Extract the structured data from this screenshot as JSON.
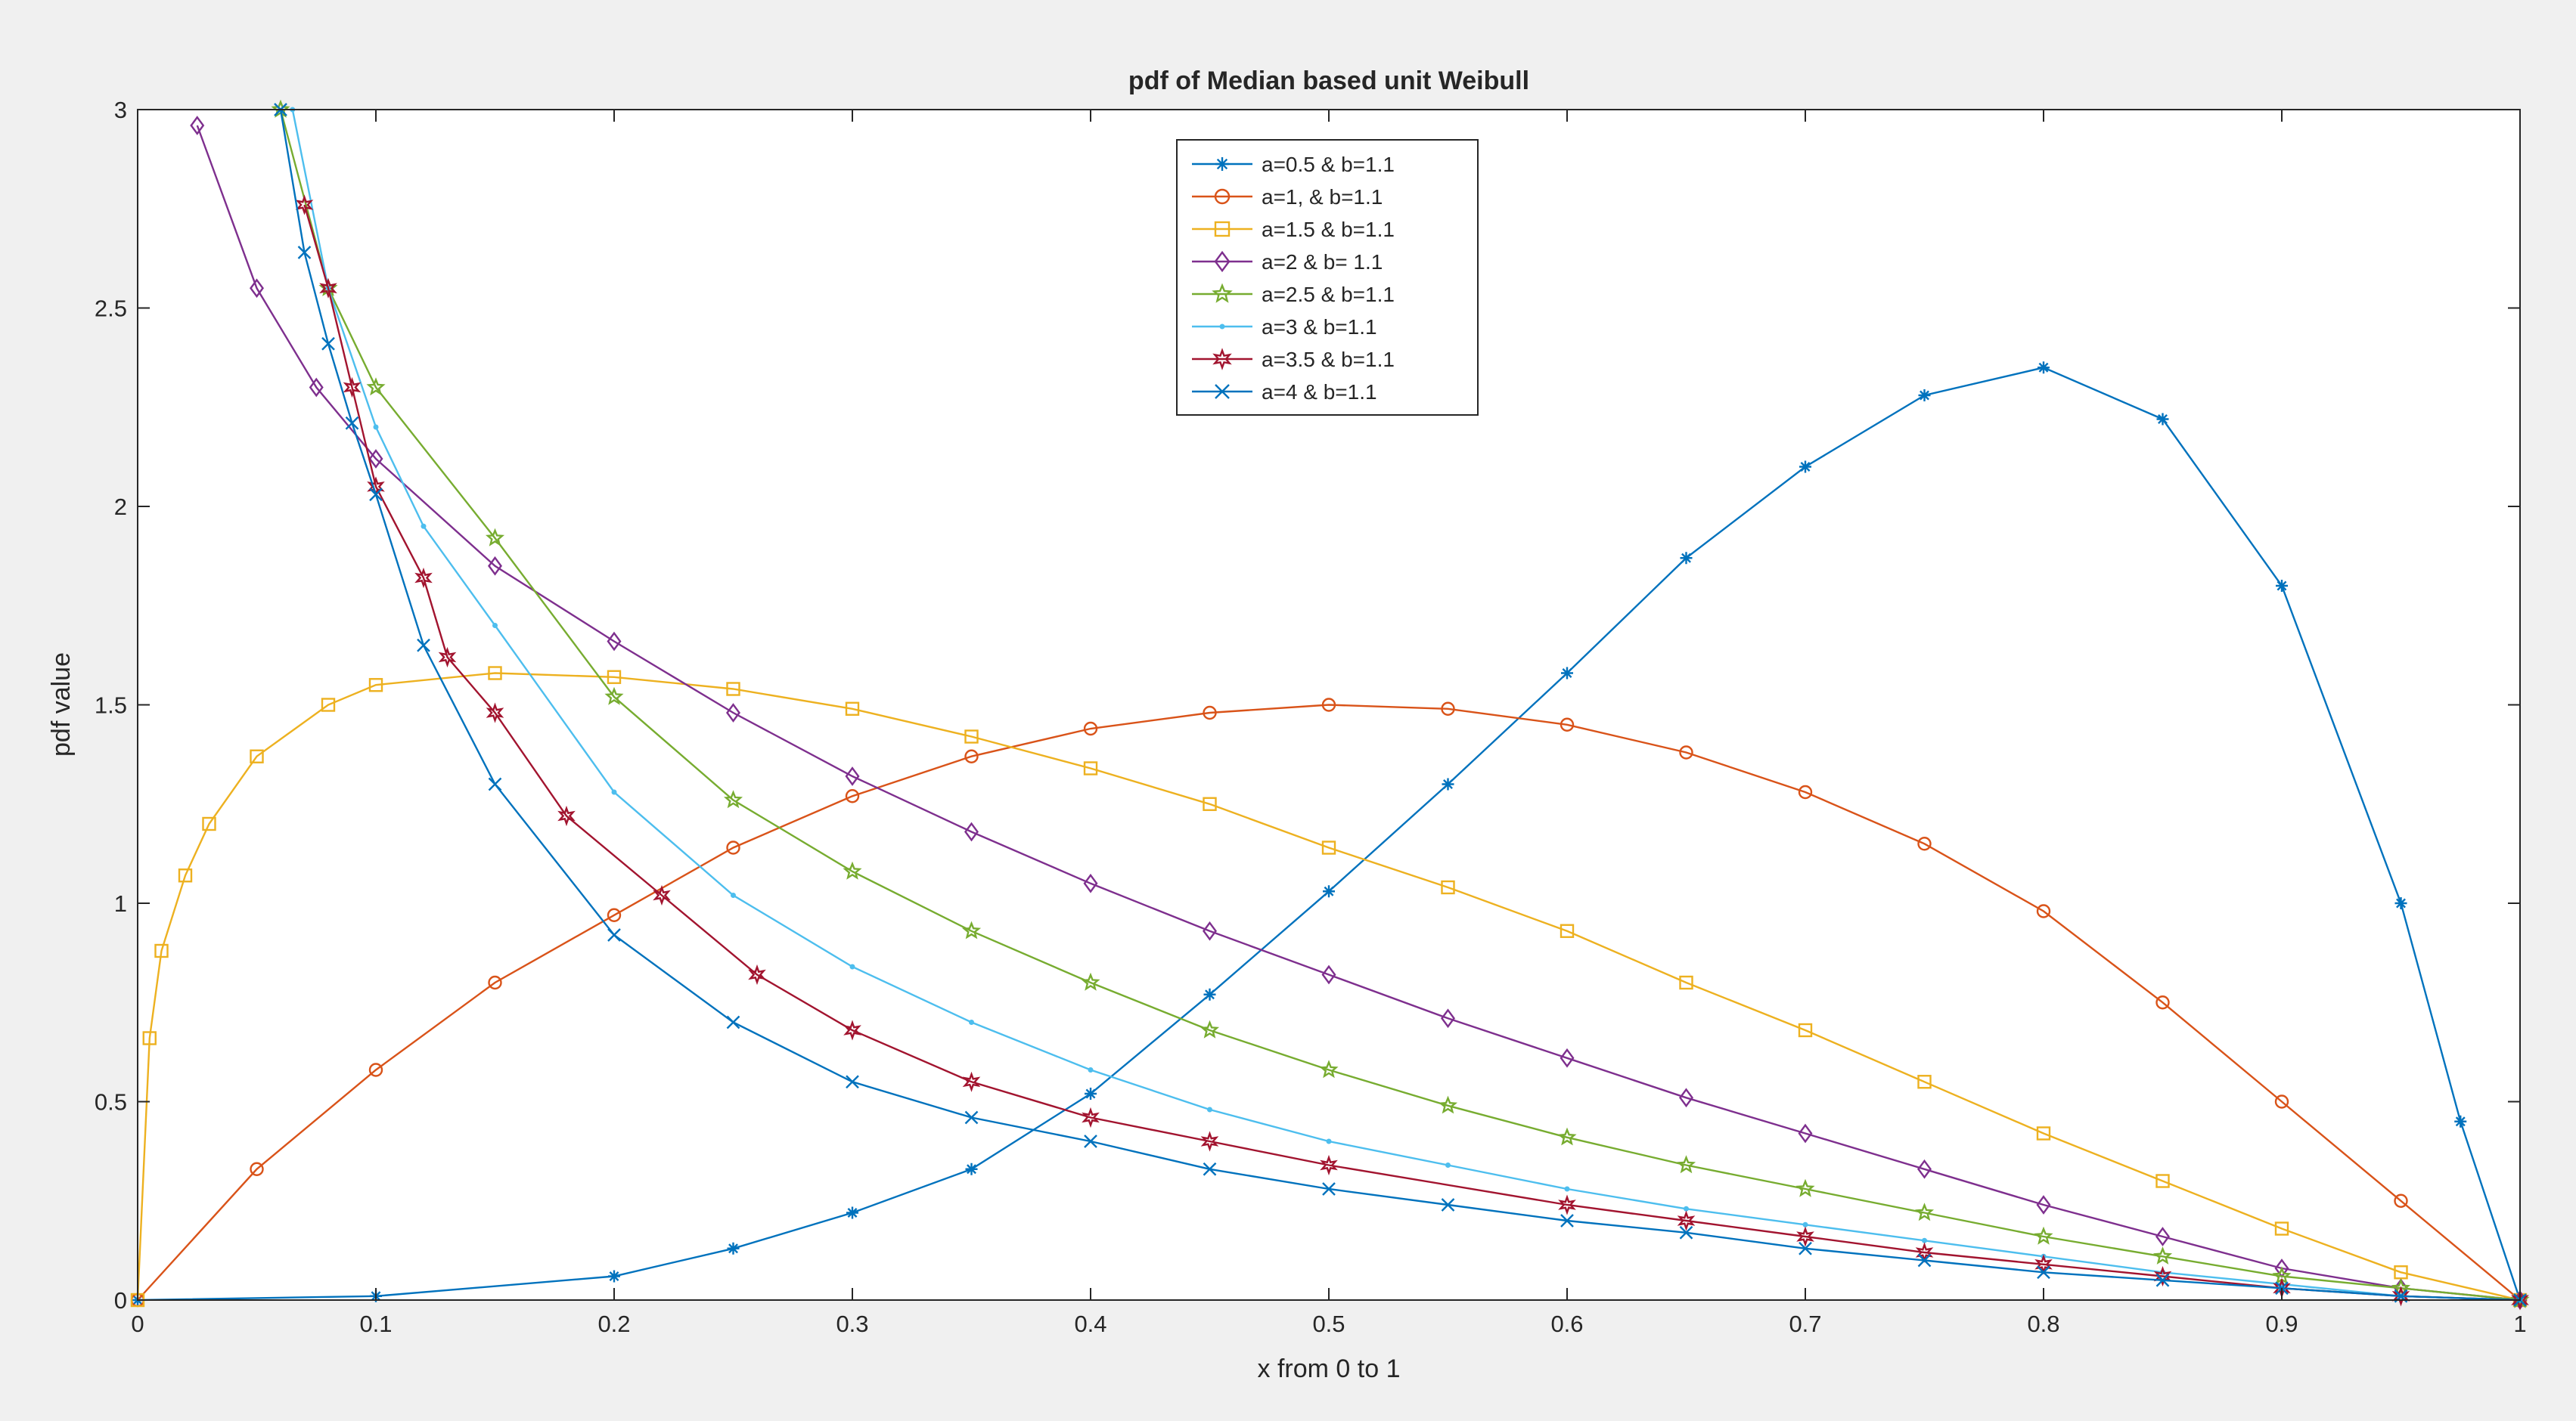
{
  "chart_data": {
    "type": "line",
    "title": "pdf of Median based unit Weibull",
    "xlabel": "x from 0 to 1",
    "ylabel": "pdf value",
    "xlim": [
      0,
      1
    ],
    "ylim": [
      0,
      3
    ],
    "xticks": [
      "0",
      "0.1",
      "0.2",
      "0.3",
      "0.4",
      "0.5",
      "0.6",
      "0.7",
      "0.8",
      "0.9",
      "1"
    ],
    "yticks": [
      "0",
      "0.5",
      "1",
      "1.5",
      "2",
      "2.5",
      "3"
    ],
    "grid": false,
    "legend_position": "top-center",
    "series": [
      {
        "name": "a=0.5 & b=1.1",
        "color": "#0072BD",
        "marker": "asterisk",
        "x": [
          0,
          0.1,
          0.2,
          0.25,
          0.3,
          0.35,
          0.4,
          0.45,
          0.5,
          0.55,
          0.6,
          0.65,
          0.7,
          0.75,
          0.8,
          0.85,
          0.9,
          0.95,
          0.975,
          1
        ],
        "y": [
          0,
          0.01,
          0.06,
          0.13,
          0.22,
          0.33,
          0.52,
          0.77,
          1.03,
          1.3,
          1.58,
          1.87,
          2.1,
          2.28,
          2.35,
          2.22,
          1.8,
          1.0,
          0.45,
          0
        ]
      },
      {
        "name": "a=1, & b=1.1",
        "color": "#D95319",
        "marker": "circle",
        "x": [
          0,
          0.05,
          0.1,
          0.15,
          0.2,
          0.25,
          0.3,
          0.35,
          0.4,
          0.45,
          0.5,
          0.55,
          0.6,
          0.65,
          0.7,
          0.75,
          0.8,
          0.85,
          0.9,
          0.95,
          1
        ],
        "y": [
          0,
          0.33,
          0.58,
          0.8,
          0.97,
          1.14,
          1.27,
          1.37,
          1.44,
          1.48,
          1.5,
          1.49,
          1.45,
          1.38,
          1.28,
          1.15,
          0.98,
          0.75,
          0.5,
          0.25,
          0
        ]
      },
      {
        "name": "a=1.5 & b=1.1",
        "color": "#EDB120",
        "marker": "square",
        "x": [
          0,
          0.005,
          0.01,
          0.02,
          0.03,
          0.05,
          0.08,
          0.1,
          0.15,
          0.2,
          0.25,
          0.3,
          0.35,
          0.4,
          0.45,
          0.5,
          0.55,
          0.6,
          0.65,
          0.7,
          0.75,
          0.8,
          0.85,
          0.9,
          0.95,
          1
        ],
        "y": [
          0,
          0.66,
          0.88,
          1.07,
          1.2,
          1.37,
          1.5,
          1.55,
          1.58,
          1.57,
          1.54,
          1.49,
          1.42,
          1.34,
          1.25,
          1.14,
          1.04,
          0.93,
          0.8,
          0.68,
          0.55,
          0.42,
          0.3,
          0.18,
          0.07,
          0
        ]
      },
      {
        "name": "a=2 & b= 1.1",
        "color": "#7E2F8E",
        "marker": "diamond",
        "x": [
          0.025,
          0.05,
          0.075,
          0.1,
          0.15,
          0.2,
          0.25,
          0.3,
          0.35,
          0.4,
          0.45,
          0.5,
          0.55,
          0.6,
          0.65,
          0.7,
          0.75,
          0.8,
          0.85,
          0.9,
          0.95,
          1
        ],
        "y": [
          2.96,
          2.55,
          2.3,
          2.12,
          1.85,
          1.66,
          1.48,
          1.32,
          1.18,
          1.05,
          0.93,
          0.82,
          0.71,
          0.61,
          0.51,
          0.42,
          0.33,
          0.24,
          0.16,
          0.08,
          0.03,
          0
        ]
      },
      {
        "name": "a=2.5 & b=1.1",
        "color": "#77AC30",
        "marker": "pentagram",
        "x": [
          0.06,
          0.08,
          0.1,
          0.15,
          0.2,
          0.25,
          0.3,
          0.35,
          0.4,
          0.45,
          0.5,
          0.55,
          0.6,
          0.65,
          0.7,
          0.75,
          0.8,
          0.85,
          0.9,
          0.95,
          1
        ],
        "y": [
          3.0,
          2.55,
          2.3,
          1.92,
          1.52,
          1.26,
          1.08,
          0.93,
          0.8,
          0.68,
          0.58,
          0.49,
          0.41,
          0.34,
          0.28,
          0.22,
          0.16,
          0.11,
          0.06,
          0.03,
          0
        ]
      },
      {
        "name": "a=3 & b=1.1",
        "color": "#4DBEEE",
        "marker": "point",
        "x": [
          0.065,
          0.08,
          0.1,
          0.12,
          0.15,
          0.2,
          0.25,
          0.3,
          0.35,
          0.4,
          0.45,
          0.5,
          0.55,
          0.6,
          0.65,
          0.7,
          0.75,
          0.8,
          0.85,
          0.9,
          0.95,
          1
        ],
        "y": [
          3.0,
          2.55,
          2.2,
          1.95,
          1.7,
          1.28,
          1.02,
          0.84,
          0.7,
          0.58,
          0.48,
          0.4,
          0.34,
          0.28,
          0.23,
          0.19,
          0.15,
          0.11,
          0.07,
          0.04,
          0.01,
          0
        ]
      },
      {
        "name": "a=3.5 & b=1.1",
        "color": "#A2142F",
        "marker": "hexagram",
        "x": [
          0.07,
          0.08,
          0.09,
          0.1,
          0.12,
          0.13,
          0.15,
          0.18,
          0.22,
          0.26,
          0.3,
          0.35,
          0.4,
          0.45,
          0.5,
          0.6,
          0.65,
          0.7,
          0.75,
          0.8,
          0.85,
          0.9,
          0.95,
          1
        ],
        "y": [
          2.76,
          2.55,
          2.3,
          2.05,
          1.82,
          1.62,
          1.48,
          1.22,
          1.02,
          0.82,
          0.68,
          0.55,
          0.46,
          0.4,
          0.34,
          0.24,
          0.2,
          0.16,
          0.12,
          0.09,
          0.06,
          0.03,
          0.01,
          0
        ]
      },
      {
        "name": "a=4 & b=1.1",
        "color": "#0072BD",
        "marker": "cross",
        "x": [
          0.06,
          0.07,
          0.08,
          0.09,
          0.1,
          0.12,
          0.15,
          0.2,
          0.25,
          0.3,
          0.35,
          0.4,
          0.45,
          0.5,
          0.55,
          0.6,
          0.65,
          0.7,
          0.75,
          0.8,
          0.85,
          0.9,
          0.95,
          1
        ],
        "y": [
          3.0,
          2.64,
          2.41,
          2.21,
          2.03,
          1.65,
          1.3,
          0.92,
          0.7,
          0.55,
          0.46,
          0.4,
          0.33,
          0.28,
          0.24,
          0.2,
          0.17,
          0.13,
          0.1,
          0.07,
          0.05,
          0.03,
          0.01,
          0
        ]
      }
    ]
  }
}
